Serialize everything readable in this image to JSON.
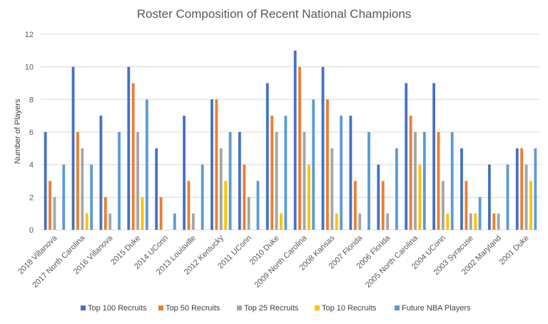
{
  "chart_data": {
    "type": "bar",
    "title": "Roster Composition of Recent National Champions",
    "xlabel": "",
    "ylabel": "Number of Players",
    "ylim": [
      0,
      12
    ],
    "yticks": [
      0,
      2,
      4,
      6,
      8,
      10,
      12
    ],
    "grid": true,
    "legend_position": "bottom",
    "categories": [
      "2018 Villanova",
      "2017 North Carolina",
      "2016 Villanova",
      "2015 Duke",
      "2014 UConn",
      "2013 Louisville",
      "2012 Kentucky",
      "2011 UConn",
      "2010 Duke",
      "2009 North Carolina",
      "2008 Kansas",
      "2007 Florida",
      "2006 Florida",
      "2005 North Carolina",
      "2004 UConn",
      "2003 Syracuse",
      "2002 Maryland",
      "2001 Duke"
    ],
    "series": [
      {
        "name": "Top 100 Recruits",
        "color": "#4472c4",
        "values": [
          6,
          10,
          7,
          10,
          5,
          7,
          8,
          6,
          9,
          11,
          10,
          7,
          4,
          9,
          9,
          5,
          4,
          5
        ]
      },
      {
        "name": "Top 50 Recruits",
        "color": "#ed7d31",
        "values": [
          3,
          6,
          2,
          9,
          2,
          3,
          8,
          4,
          7,
          10,
          8,
          3,
          3,
          7,
          6,
          3,
          1,
          5
        ]
      },
      {
        "name": "Top 25 Recruits",
        "color": "#a5a5a5",
        "values": [
          2,
          5,
          1,
          6,
          0,
          1,
          5,
          2,
          6,
          6,
          5,
          1,
          1,
          6,
          3,
          1,
          1,
          4
        ]
      },
      {
        "name": "Top 10 Recruits",
        "color": "#ffc000",
        "values": [
          0,
          1,
          0,
          2,
          0,
          0,
          3,
          0,
          1,
          4,
          1,
          0,
          0,
          4,
          1,
          1,
          0,
          3
        ]
      },
      {
        "name": "Future NBA Players",
        "color": "#5b9bd5",
        "values": [
          4,
          4,
          6,
          8,
          1,
          4,
          6,
          3,
          7,
          8,
          7,
          6,
          5,
          6,
          6,
          2,
          4,
          5
        ]
      }
    ]
  }
}
